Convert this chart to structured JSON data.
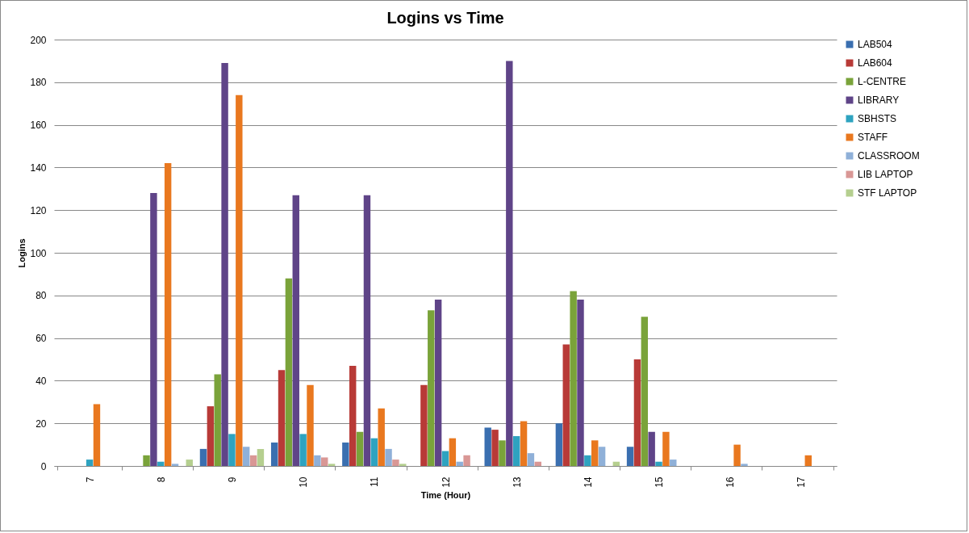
{
  "chart_data": {
    "type": "bar",
    "title": "Logins vs Time",
    "xlabel": "Time (Hour)",
    "ylabel": "Logins",
    "categories": [
      "7",
      "8",
      "9",
      "10",
      "11",
      "12",
      "13",
      "14",
      "15",
      "16",
      "17"
    ],
    "series": [
      {
        "name": "LAB504",
        "color": "#3a6fb0",
        "values": [
          0,
          0,
          8,
          11,
          11,
          0,
          18,
          20,
          9,
          0,
          0
        ]
      },
      {
        "name": "LAB604",
        "color": "#b83a37",
        "values": [
          0,
          0,
          28,
          45,
          47,
          38,
          17,
          57,
          50,
          0,
          0
        ]
      },
      {
        "name": "L-CENTRE",
        "color": "#7aa33a",
        "values": [
          0,
          5,
          43,
          88,
          16,
          73,
          12,
          82,
          70,
          0,
          0
        ]
      },
      {
        "name": "LIBRARY",
        "color": "#5f4488",
        "values": [
          0,
          128,
          189,
          127,
          127,
          78,
          190,
          78,
          16,
          0,
          0
        ]
      },
      {
        "name": "SBHSTS",
        "color": "#2ea3c0",
        "values": [
          3,
          2,
          15,
          15,
          13,
          7,
          14,
          5,
          2,
          0,
          0
        ]
      },
      {
        "name": "STAFF",
        "color": "#e9781f",
        "values": [
          29,
          142,
          174,
          38,
          27,
          13,
          21,
          12,
          16,
          10,
          5
        ]
      },
      {
        "name": "CLASSROOM",
        "color": "#8fb0d8",
        "values": [
          0,
          1,
          9,
          5,
          8,
          2,
          6,
          9,
          3,
          1,
          0
        ]
      },
      {
        "name": "LIB LAPTOP",
        "color": "#d99795",
        "values": [
          0,
          0,
          5,
          4,
          3,
          5,
          2,
          0,
          0,
          0,
          0
        ]
      },
      {
        "name": "STF LAPTOP",
        "color": "#b5cf8f",
        "values": [
          0,
          3,
          8,
          1,
          1,
          0,
          0,
          2,
          0,
          0,
          0
        ]
      }
    ],
    "ylim": [
      0,
      200
    ],
    "yticks": [
      0,
      20,
      40,
      60,
      80,
      100,
      120,
      140,
      160,
      180,
      200
    ],
    "grid": "y",
    "legend": "right"
  }
}
